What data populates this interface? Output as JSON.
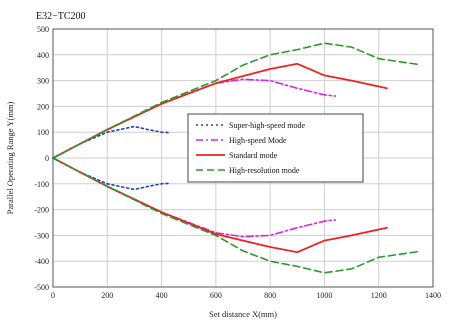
{
  "chart_data": {
    "type": "line",
    "title": "E32−TC200",
    "header_fragment": "",
    "xlabel": "Set distance X(mm)",
    "ylabel": "Parallel Operating Range Y(mm)",
    "xlim": [
      0,
      1400
    ],
    "ylim": [
      -500,
      500
    ],
    "xticks": [
      0,
      200,
      400,
      600,
      800,
      1000,
      1200,
      1400
    ],
    "yticks": [
      -500,
      -400,
      -300,
      -200,
      -100,
      0,
      100,
      200,
      300,
      400,
      500
    ],
    "grid": true,
    "legend_position": "center",
    "series": [
      {
        "name": "Super-high-speed mode",
        "color": "#1f3fbf",
        "style": "dotted",
        "upper": [
          [
            0,
            0
          ],
          [
            100,
            55
          ],
          [
            200,
            100
          ],
          [
            300,
            122
          ],
          [
            350,
            110
          ],
          [
            400,
            100
          ],
          [
            430,
            98
          ]
        ],
        "lower": [
          [
            0,
            0
          ],
          [
            100,
            -55
          ],
          [
            200,
            -100
          ],
          [
            300,
            -122
          ],
          [
            350,
            -110
          ],
          [
            400,
            -100
          ],
          [
            430,
            -98
          ]
        ]
      },
      {
        "name": "High-speed Mode",
        "color": "#e020e0",
        "style": "dashdot",
        "upper": [
          [
            0,
            0
          ],
          [
            200,
            110
          ],
          [
            400,
            210
          ],
          [
            600,
            290
          ],
          [
            700,
            305
          ],
          [
            800,
            300
          ],
          [
            900,
            270
          ],
          [
            1000,
            245
          ],
          [
            1040,
            240
          ]
        ],
        "lower": [
          [
            0,
            0
          ],
          [
            200,
            -110
          ],
          [
            400,
            -210
          ],
          [
            600,
            -290
          ],
          [
            700,
            -305
          ],
          [
            800,
            -300
          ],
          [
            900,
            -270
          ],
          [
            1000,
            -245
          ],
          [
            1040,
            -240
          ]
        ]
      },
      {
        "name": "Standard mode",
        "color": "#ee2222",
        "style": "solid",
        "upper": [
          [
            0,
            0
          ],
          [
            200,
            110
          ],
          [
            400,
            210
          ],
          [
            600,
            290
          ],
          [
            800,
            345
          ],
          [
            900,
            365
          ],
          [
            1000,
            320
          ],
          [
            1100,
            300
          ],
          [
            1230,
            270
          ]
        ],
        "lower": [
          [
            0,
            0
          ],
          [
            200,
            -110
          ],
          [
            400,
            -210
          ],
          [
            600,
            -295
          ],
          [
            800,
            -345
          ],
          [
            900,
            -365
          ],
          [
            1000,
            -320
          ],
          [
            1100,
            -300
          ],
          [
            1230,
            -270
          ]
        ]
      },
      {
        "name": "High-resolution mode",
        "color": "#2a9a2a",
        "style": "dashed",
        "upper": [
          [
            0,
            0
          ],
          [
            200,
            110
          ],
          [
            400,
            215
          ],
          [
            600,
            300
          ],
          [
            700,
            360
          ],
          [
            800,
            400
          ],
          [
            900,
            420
          ],
          [
            1000,
            445
          ],
          [
            1100,
            430
          ],
          [
            1200,
            385
          ],
          [
            1350,
            362
          ]
        ],
        "lower": [
          [
            0,
            0
          ],
          [
            200,
            -110
          ],
          [
            400,
            -215
          ],
          [
            600,
            -300
          ],
          [
            700,
            -360
          ],
          [
            800,
            -400
          ],
          [
            900,
            -420
          ],
          [
            1000,
            -445
          ],
          [
            1100,
            -430
          ],
          [
            1200,
            -385
          ],
          [
            1350,
            -362
          ]
        ]
      }
    ]
  }
}
